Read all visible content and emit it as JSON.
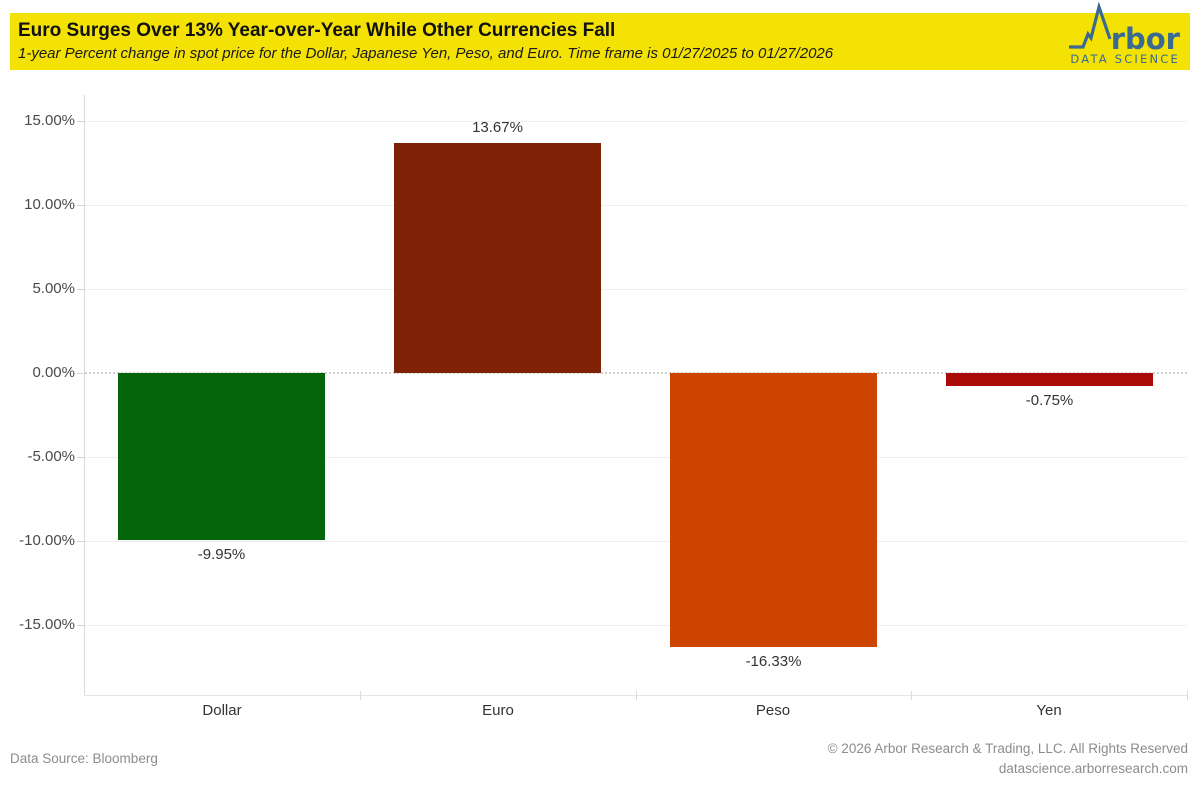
{
  "header": {
    "title": "Euro Surges Over 13% Year-over-Year While Other Currencies Fall",
    "subtitle": "1-year Percent change in spot price for the Dollar, Japanese Yen, Peso, and Euro. Time frame is 01/27/2025 to 01/27/2026",
    "background_color": "#F4E204",
    "logo": {
      "icon": "arbor-peak-icon",
      "brand_text": "rbor",
      "tagline": "DATA SCIENCE",
      "color": "#3A6A92"
    }
  },
  "chart_data": {
    "type": "bar",
    "categories": [
      "Dollar",
      "Euro",
      "Peso",
      "Yen"
    ],
    "values": [
      -9.95,
      13.67,
      -16.33,
      -0.75
    ],
    "value_labels": [
      "-9.95%",
      "13.67%",
      "-16.33%",
      "-0.75%"
    ],
    "bar_colors": [
      "#05650A",
      "#7E2104",
      "#CC4400",
      "#A80909"
    ],
    "title": "Euro Surges Over 13% Year-over-Year While Other Currencies Fall",
    "xlabel": "",
    "ylabel": "",
    "ylim": [
      -19.2,
      16.5
    ],
    "yticks": [
      15,
      10,
      5,
      0,
      -5,
      -10,
      -15
    ],
    "ytick_labels": [
      "15.00%",
      "10.00%",
      "5.00%",
      "0.00%",
      "-5.00%",
      "-10.00%",
      "-15.00%"
    ],
    "grid": true,
    "zero_line_style": "dotted",
    "legend": false
  },
  "footer": {
    "data_source": "Data Source: Bloomberg",
    "copyright": "© 2026 Arbor Research & Trading, LLC. All Rights Reserved",
    "website": "datascience.arborresearch.com"
  }
}
